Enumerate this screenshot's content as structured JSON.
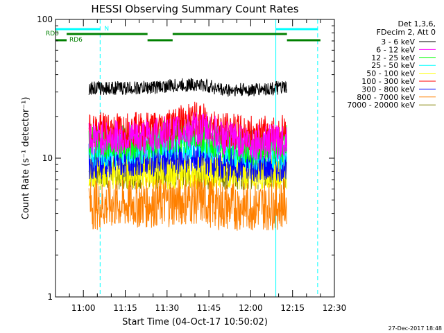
{
  "chart_data": {
    "type": "line",
    "title": "HESSI Observing Summary Count Rates",
    "xlabel": "Start Time (04-Oct-17 10:50:02)",
    "ylabel": "Count Rate (s⁻¹ detector⁻¹)",
    "yscale": "log",
    "ylim": [
      1,
      100
    ],
    "xlim": [
      "10:50",
      "12:30"
    ],
    "x_ticks": [
      "11:00",
      "11:15",
      "11:30",
      "11:45",
      "12:00",
      "12:15",
      "12:30"
    ],
    "y_ticks": [
      "1",
      "10",
      "100"
    ],
    "legend_title": [
      "Det 1,3,6,",
      "FDecim 2, Att 0"
    ],
    "legend_position": "right",
    "series": [
      {
        "name": "3 - 6 keV",
        "color": "#000000",
        "x": [
          "11:02",
          "11:10",
          "11:20",
          "11:30",
          "11:40",
          "11:45",
          "11:50",
          "12:00",
          "12:10",
          "12:13"
        ],
        "y": [
          32,
          32,
          32,
          33,
          34,
          33,
          31,
          31,
          32,
          32
        ]
      },
      {
        "name": "6 - 12 keV",
        "color": "#ff00ff",
        "x": [
          "11:02",
          "11:10",
          "11:20",
          "11:30",
          "11:40",
          "11:45",
          "11:50",
          "12:00",
          "12:10",
          "12:13"
        ],
        "y": [
          14,
          14,
          14,
          15,
          16,
          16,
          14,
          13,
          13,
          14
        ]
      },
      {
        "name": "12 - 25 keV",
        "color": "#00ff00",
        "x": [
          "11:02",
          "11:10",
          "11:20",
          "11:30",
          "11:40",
          "11:45",
          "11:50",
          "12:00",
          "12:10",
          "12:13"
        ],
        "y": [
          13,
          13,
          13,
          14,
          15,
          14,
          13,
          12,
          12,
          13
        ]
      },
      {
        "name": "25 - 50 keV",
        "color": "#00ffff",
        "x": [
          "11:02",
          "11:10",
          "11:20",
          "11:30",
          "11:40",
          "11:45",
          "11:50",
          "12:00",
          "12:10",
          "12:13"
        ],
        "y": [
          11.5,
          11.5,
          12,
          12.5,
          13,
          12.5,
          12,
          11,
          11,
          11.5
        ]
      },
      {
        "name": "50 - 100 keV",
        "color": "#ffff00",
        "x": [
          "11:02",
          "11:10",
          "11:20",
          "11:30",
          "11:40",
          "11:45",
          "11:50",
          "12:00",
          "12:10",
          "12:13"
        ],
        "y": [
          8,
          8,
          8,
          8,
          8,
          8,
          8,
          8,
          8,
          8
        ]
      },
      {
        "name": "100 - 300 keV",
        "color": "#ff0000",
        "x": [
          "11:02",
          "11:10",
          "11:20",
          "11:30",
          "11:40",
          "11:45",
          "11:50",
          "12:00",
          "12:10",
          "12:13"
        ],
        "y": [
          16,
          16,
          16,
          17,
          19,
          18,
          16,
          15,
          15,
          16
        ]
      },
      {
        "name": "300 - 800 keV",
        "color": "#0000ff",
        "x": [
          "11:02",
          "11:10",
          "11:20",
          "11:30",
          "11:40",
          "11:45",
          "11:50",
          "12:00",
          "12:10",
          "12:13"
        ],
        "y": [
          9.5,
          9.5,
          10,
          10,
          10.5,
          10,
          9,
          9,
          9,
          9.5
        ]
      },
      {
        "name": "800 - 7000 keV",
        "color": "#ff8000",
        "x": [
          "11:02",
          "11:10",
          "11:20",
          "11:30",
          "11:40",
          "11:45",
          "11:50",
          "12:00",
          "12:10",
          "12:13"
        ],
        "y": [
          4.6,
          4.6,
          4.7,
          4.8,
          5,
          4.8,
          4.5,
          4.5,
          4.6,
          4.8
        ]
      },
      {
        "name": "7000 - 20000 keV",
        "color": "#808000",
        "x": [
          "11:02",
          "11:10",
          "11:20",
          "11:30",
          "11:40",
          "11:45",
          "11:50",
          "12:00",
          "12:10",
          "12:13"
        ],
        "y": [
          8,
          8,
          8,
          8,
          8,
          8,
          8,
          8,
          8,
          8
        ]
      }
    ],
    "vertical_lines": [
      {
        "x": "10:50",
        "style": "solid",
        "color": "#00ffff"
      },
      {
        "x": "11:06",
        "style": "dashed",
        "color": "#00ffff"
      },
      {
        "x": "12:09",
        "style": "solid",
        "color": "#00ffff"
      },
      {
        "x": "12:24",
        "style": "dashed",
        "color": "#00ffff"
      }
    ],
    "orbit_bars": [
      {
        "label": "N",
        "color": "#00ffff",
        "segments": [
          [
            "10:50",
            "11:06"
          ],
          [
            "12:09",
            "12:24"
          ]
        ]
      },
      {
        "label": "RD0",
        "color": "#008000",
        "segments": [
          [
            "10:54",
            "11:23"
          ],
          [
            "11:32",
            "12:13"
          ]
        ]
      },
      {
        "label": "RD6",
        "color": "#008000",
        "segments": [
          [
            "10:50",
            "10:54"
          ],
          [
            "11:23",
            "11:32"
          ],
          [
            "12:13",
            "12:25"
          ]
        ]
      }
    ],
    "footer_date": "27-Dec-2017 18:48",
    "grid": false
  }
}
